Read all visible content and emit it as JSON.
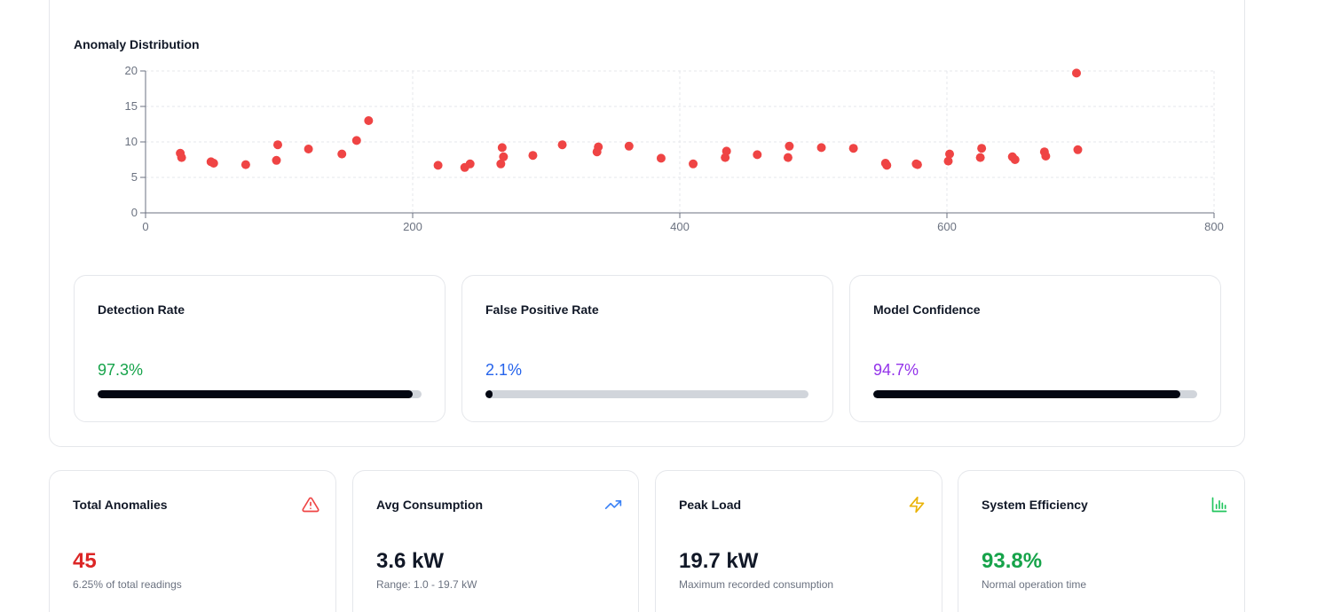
{
  "anomaly_chart": {
    "title": "Anomaly Distribution",
    "dot_color": "#ef4444"
  },
  "chart_data": {
    "type": "scatter",
    "title": "Anomaly Distribution",
    "xlabel": "",
    "ylabel": "",
    "xlim": [
      0,
      800
    ],
    "ylim": [
      0,
      20
    ],
    "x_ticks": [
      "0",
      "200",
      "400",
      "600",
      "800"
    ],
    "y_ticks": [
      "0",
      "5",
      "10",
      "15",
      "20"
    ],
    "grid": true,
    "series": [
      {
        "color": "#ef4444",
        "points": [
          [
            26,
            8.4
          ],
          [
            27,
            7.8
          ],
          [
            49,
            7.2
          ],
          [
            51,
            7.0
          ],
          [
            75,
            6.8
          ],
          [
            98,
            7.4
          ],
          [
            99,
            9.6
          ],
          [
            122,
            9.0
          ],
          [
            147,
            8.3
          ],
          [
            158,
            10.2
          ],
          [
            167,
            13.0
          ],
          [
            219,
            6.7
          ],
          [
            239,
            6.4
          ],
          [
            243,
            6.9
          ],
          [
            266,
            6.9
          ],
          [
            267,
            9.2
          ],
          [
            268,
            7.9
          ],
          [
            290,
            8.1
          ],
          [
            312,
            9.6
          ],
          [
            338,
            8.6
          ],
          [
            339,
            9.3
          ],
          [
            362,
            9.4
          ],
          [
            386,
            7.7
          ],
          [
            410,
            6.9
          ],
          [
            434,
            7.8
          ],
          [
            435,
            8.7
          ],
          [
            458,
            8.2
          ],
          [
            481,
            7.8
          ],
          [
            482,
            9.4
          ],
          [
            506,
            9.2
          ],
          [
            530,
            9.1
          ],
          [
            554,
            7.0
          ],
          [
            555,
            6.7
          ],
          [
            577,
            6.9
          ],
          [
            578,
            6.8
          ],
          [
            601,
            7.3
          ],
          [
            602,
            8.3
          ],
          [
            625,
            7.8
          ],
          [
            626,
            9.1
          ],
          [
            649,
            7.9
          ],
          [
            651,
            7.5
          ],
          [
            673,
            8.6
          ],
          [
            674,
            8.0
          ],
          [
            697,
            19.7
          ],
          [
            698,
            8.9
          ]
        ]
      }
    ]
  },
  "metrics": [
    {
      "label": "Detection Rate",
      "value": "97.3%",
      "fraction": 0.973,
      "color": "#16a34a"
    },
    {
      "label": "False Positive Rate",
      "value": "2.1%",
      "fraction": 0.021,
      "color": "#2563eb"
    },
    {
      "label": "Model Confidence",
      "value": "94.7%",
      "fraction": 0.947,
      "color": "#9333ea"
    }
  ],
  "stats": [
    {
      "label": "Total Anomalies",
      "value": "45",
      "sub": "6.25% of total readings",
      "icon": "alert-triangle-icon",
      "value_color": "#dc2626",
      "icon_color": "#ef4444"
    },
    {
      "label": "Avg Consumption",
      "value": "3.6 kW",
      "sub": "Range: 1.0 - 19.7 kW",
      "icon": "trending-up-icon",
      "value_color": "#111827",
      "icon_color": "#3b82f6"
    },
    {
      "label": "Peak Load",
      "value": "19.7 kW",
      "sub": "Maximum recorded consumption",
      "icon": "lightning-bolt-icon",
      "value_color": "#111827",
      "icon_color": "#eab308"
    },
    {
      "label": "System Efficiency",
      "value": "93.8%",
      "sub": "Normal operation time",
      "icon": "bar-chart-icon",
      "value_color": "#16a34a",
      "icon_color": "#22c55e"
    }
  ]
}
